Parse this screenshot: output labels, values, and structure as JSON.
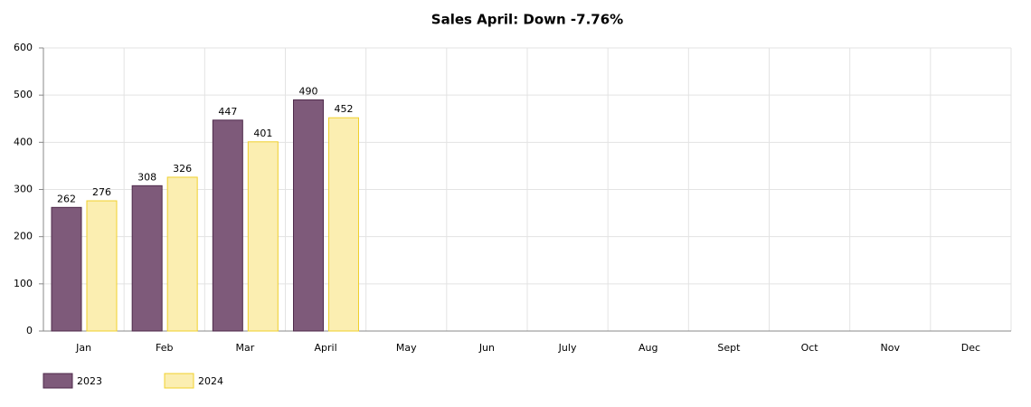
{
  "chart_data": {
    "type": "bar",
    "title": "Sales April: Down -7.76%",
    "categories": [
      "Jan",
      "Feb",
      "Mar",
      "April",
      "May",
      "Jun",
      "July",
      "Aug",
      "Sept",
      "Oct",
      "Nov",
      "Dec"
    ],
    "series": [
      {
        "name": "2023",
        "color": "#7e5a7a",
        "border_color": "#4f2a4b",
        "values": [
          262,
          308,
          447,
          490,
          null,
          null,
          null,
          null,
          null,
          null,
          null,
          null
        ]
      },
      {
        "name": "2024",
        "color": "#fbeeb1",
        "border_color": "#f0d02c",
        "values": [
          276,
          326,
          401,
          452,
          null,
          null,
          null,
          null,
          null,
          null,
          null,
          null
        ]
      }
    ],
    "ylim": [
      0,
      600
    ],
    "yticks": [
      0,
      100,
      200,
      300,
      400,
      500,
      600
    ],
    "grid": true,
    "legend": "bottom-left"
  }
}
